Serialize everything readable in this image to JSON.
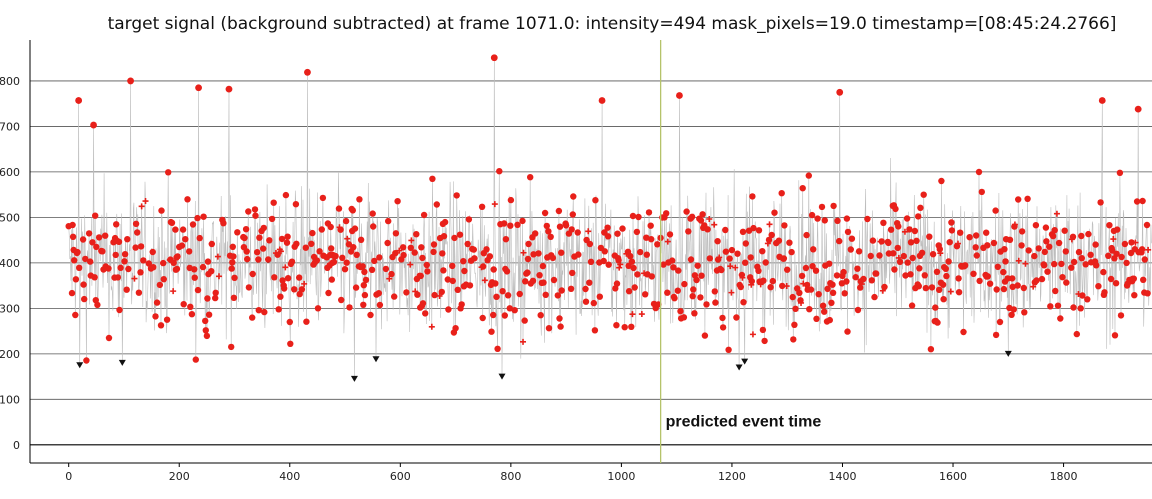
{
  "chart_data": {
    "type": "scatter",
    "title": "target signal (background subtracted) at frame 1071.0: intensity=494 mask_pixels=19.0 timestamp=[08:45:24.2766]",
    "xlim": [
      -70,
      1960
    ],
    "ylim": [
      -40,
      890
    ],
    "xticks": [
      0,
      200,
      400,
      600,
      800,
      1000,
      1200,
      1400,
      1600,
      1800
    ],
    "yticks": [
      0,
      100,
      200,
      300,
      400,
      500,
      600,
      700,
      800
    ],
    "grid": "horizontal",
    "series": [
      {
        "color": "#e8201a",
        "line_color": "#bdbdbd",
        "baseline": 400,
        "spread": 75,
        "n_points": 1960,
        "notable_points": [
          {
            "x": 18,
            "y": 757
          },
          {
            "x": 45,
            "y": 703
          },
          {
            "x": 112,
            "y": 800
          },
          {
            "x": 235,
            "y": 785
          },
          {
            "x": 290,
            "y": 782
          },
          {
            "x": 432,
            "y": 819
          },
          {
            "x": 770,
            "y": 851
          },
          {
            "x": 965,
            "y": 757
          },
          {
            "x": 1105,
            "y": 768
          },
          {
            "x": 1395,
            "y": 775
          },
          {
            "x": 1870,
            "y": 757
          },
          {
            "x": 1935,
            "y": 738
          }
        ],
        "low_markers": [
          {
            "x": 20,
            "y": 175
          },
          {
            "x": 97,
            "y": 180
          },
          {
            "x": 517,
            "y": 145
          },
          {
            "x": 556,
            "y": 188
          },
          {
            "x": 784,
            "y": 150
          },
          {
            "x": 1213,
            "y": 170
          },
          {
            "x": 1223,
            "y": 183
          },
          {
            "x": 1700,
            "y": 200
          }
        ]
      }
    ],
    "annotation": {
      "x": 1071,
      "label": "predicted event time",
      "color": "#b5c36a"
    }
  }
}
